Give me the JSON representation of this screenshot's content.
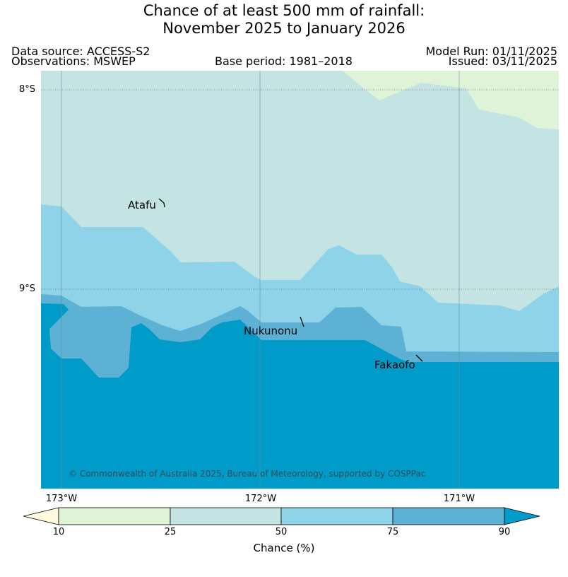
{
  "title": {
    "line1": "Chance of at least 500 mm of rainfall:",
    "line2": "November 2025 to January 2026"
  },
  "header": {
    "data_source": "Data source: ACCESS-S2",
    "observations": "Observations: MSWEP",
    "base_period": "Base period: 1981–2018",
    "model_run": "Model Run: 01/11/2025",
    "issued": "Issued: 03/11/2025"
  },
  "map": {
    "lat_labels": [
      "8°S",
      "9°S"
    ],
    "lon_labels": [
      "173°W",
      "172°W",
      "171°W"
    ],
    "places": [
      "Atafu",
      "Nukunonu",
      "Fakaofo"
    ],
    "copyright": "© Commonwealth of Australia 2025, Bureau of Meteorology, supported by COSPPac"
  },
  "legend": {
    "label": "Chance (%)",
    "ticks": [
      "10",
      "25",
      "50",
      "75",
      "90"
    ],
    "colors": {
      "below_10": "#fffadc",
      "10_25": "#dff3d8",
      "25_50": "#c3e4e3",
      "50_75": "#8fd3e9",
      "75_90": "#5db1d4",
      "above_90": "#009bc8"
    }
  }
}
